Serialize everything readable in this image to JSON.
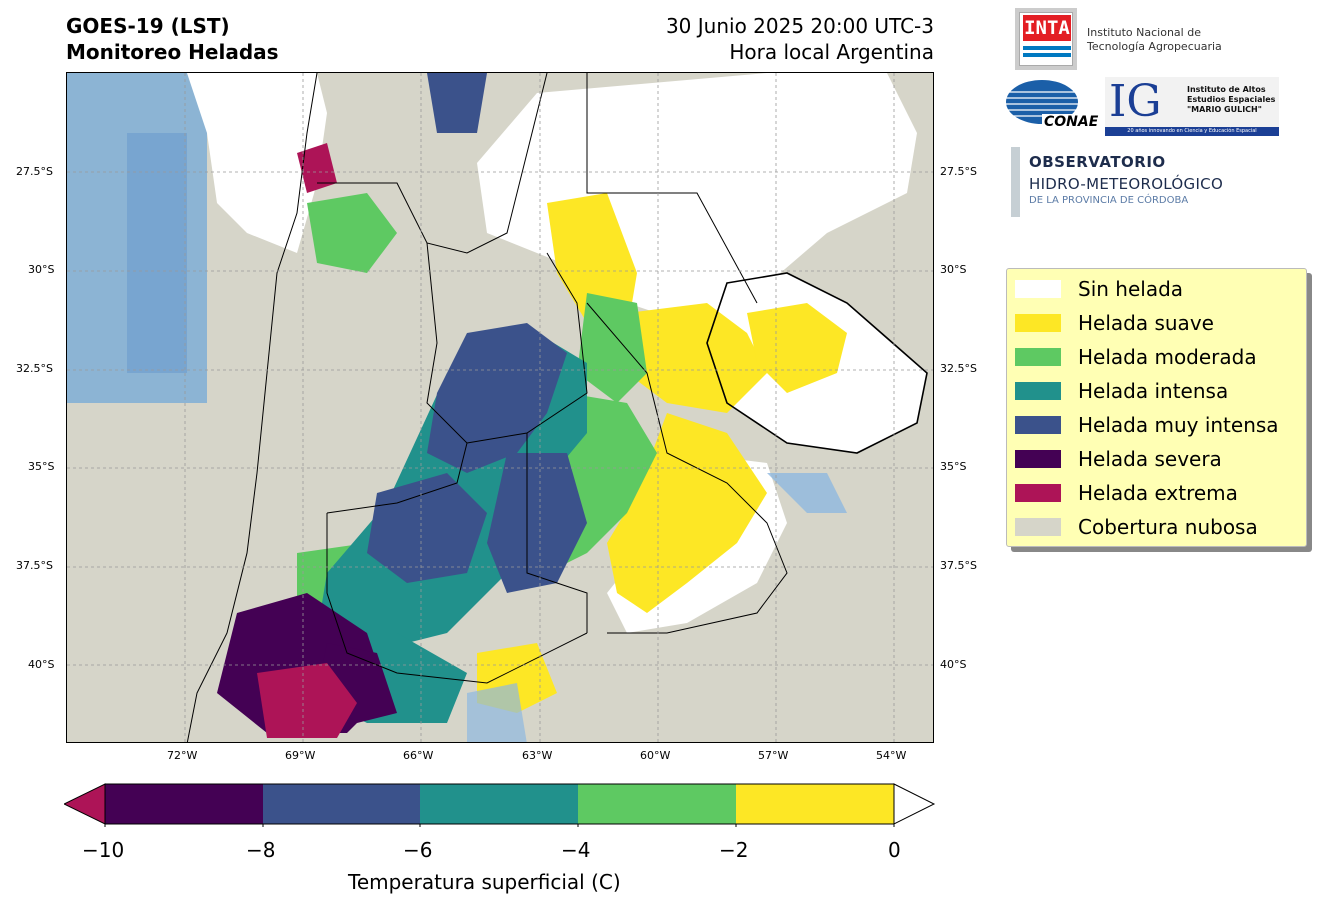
{
  "header": {
    "title_line1": "GOES-19 (LST)",
    "title_line2": "Monitoreo Heladas",
    "date_line1": "30 Junio 2025 20:00 UTC-3",
    "date_line2": "Hora local Argentina"
  },
  "map": {
    "lat_labels": [
      "27.5°S",
      "30°S",
      "32.5°S",
      "35°S",
      "37.5°S",
      "40°S"
    ],
    "lon_labels": [
      "72°W",
      "69°W",
      "66°W",
      "63°W",
      "60°W",
      "57°W",
      "54°W"
    ]
  },
  "logos": {
    "inta_mark": "INTA",
    "inta_name_line1": "Instituto Nacional de",
    "inta_name_line2": "Tecnología Agropecuaria",
    "conae_mark": "CONAE",
    "ig_mark": "IG",
    "ig_line1": "Instituto de Altos",
    "ig_line2": "Estudios Espaciales",
    "ig_line3": "\"MARIO GULICH\"",
    "ig_tagline": "20 años innovando en Ciencia y Educación Espacial",
    "obs_line1": "OBSERVATORIO",
    "obs_line2": "HIDRO-METEOROLÓGICO",
    "obs_line3": "DE LA PROVINCIA DE CÓRDOBA"
  },
  "legend": {
    "items": [
      {
        "label": "Sin helada",
        "color": "#ffffff"
      },
      {
        "label": "Helada suave",
        "color": "#fde725"
      },
      {
        "label": "Helada moderada",
        "color": "#5ec962"
      },
      {
        "label": "Helada intensa",
        "color": "#21918c"
      },
      {
        "label": "Helada muy intensa",
        "color": "#3b528b"
      },
      {
        "label": "Helada severa",
        "color": "#440154"
      },
      {
        "label": "Helada extrema",
        "color": "#ad1457"
      },
      {
        "label": "Cobertura nubosa",
        "color": "#d6d5c9"
      }
    ]
  },
  "colorbar": {
    "ticks": [
      "−10",
      "−8",
      "−6",
      "−4",
      "−2",
      "0"
    ],
    "label": "Temperatura superficial (C)",
    "segment_colors": [
      "#440154",
      "#3b528b",
      "#21918c",
      "#5ec962",
      "#fde725"
    ],
    "under_color": "#ad1457",
    "over_color": "#ffffff"
  }
}
